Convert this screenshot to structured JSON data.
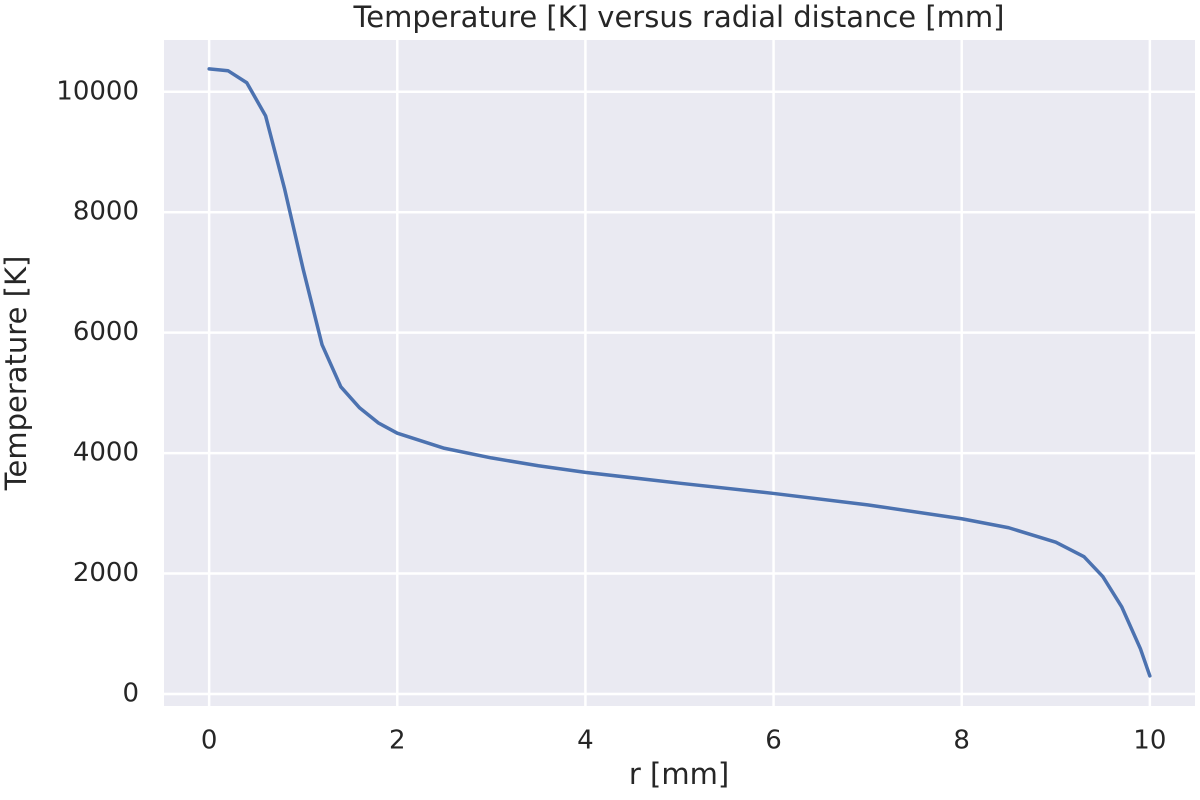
{
  "chart_data": {
    "type": "line",
    "title": "Temperature [K] versus radial distance [mm]",
    "x_label": "r [mm]",
    "y_label": "Temperature [K]",
    "x": [
      0,
      0.2,
      0.4,
      0.6,
      0.8,
      1.0,
      1.2,
      1.4,
      1.6,
      1.8,
      2.0,
      2.5,
      3.0,
      3.5,
      4.0,
      5.0,
      6.0,
      7.0,
      8.0,
      8.5,
      9.0,
      9.3,
      9.5,
      9.7,
      9.9,
      10.0
    ],
    "series": [
      {
        "name": "Temperature",
        "color": "#4c72b0",
        "values": [
          10380,
          10350,
          10150,
          9600,
          8400,
          7050,
          5800,
          5100,
          4750,
          4500,
          4330,
          4080,
          3920,
          3790,
          3680,
          3500,
          3330,
          3140,
          2910,
          2760,
          2520,
          2280,
          1950,
          1450,
          750,
          300
        ]
      }
    ],
    "xlim": [
      -0.48,
      10.48
    ],
    "ylim": [
      -200,
      10860
    ],
    "xticks": [
      0,
      2,
      4,
      6,
      8,
      10
    ],
    "yticks": [
      0,
      2000,
      4000,
      6000,
      8000,
      10000
    ],
    "grid": true
  }
}
